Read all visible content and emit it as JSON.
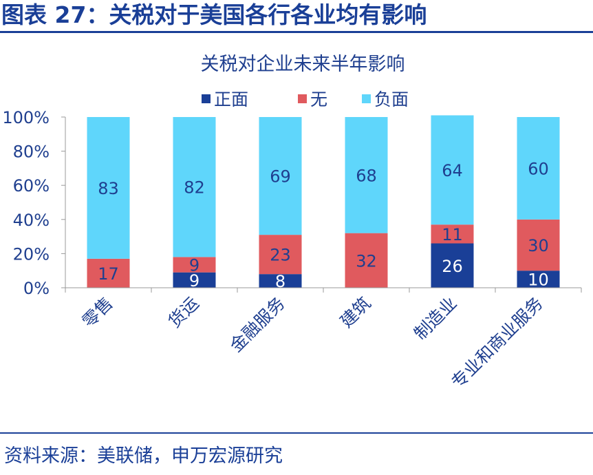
{
  "figure": {
    "title": "图表 27：关税对于美国各行各业均有影响",
    "source": "资料来源：美联储，申万宏源研究"
  },
  "colors": {
    "accent": "#1a3f97",
    "positive": "#1a3f97",
    "none": "#e05a5e",
    "negative": "#5fd6fb",
    "axis_text": "#1f3f8f"
  },
  "chart_data": {
    "type": "bar",
    "stacked": true,
    "title": "关税对企业未来半年影响",
    "categories": [
      "零售",
      "货运",
      "金融服务",
      "建筑",
      "制造业",
      "专业和商业服务"
    ],
    "series": [
      {
        "name": "正面",
        "values": [
          0,
          9,
          8,
          0,
          26,
          10
        ],
        "color": "#1a3f97",
        "label_color": "#ffffff"
      },
      {
        "name": "无",
        "values": [
          17,
          9,
          23,
          32,
          11,
          30
        ],
        "color": "#e05a5e",
        "label_color": "#1f3f8f"
      },
      {
        "name": "负面",
        "values": [
          83,
          82,
          69,
          68,
          64,
          60
        ],
        "color": "#5fd6fb",
        "label_color": "#1f3f8f"
      }
    ],
    "ylim": [
      0,
      100
    ],
    "yticks": [
      "0%",
      "20%",
      "40%",
      "60%",
      "80%",
      "100%"
    ],
    "legend_position": "top-center",
    "grid": false
  }
}
